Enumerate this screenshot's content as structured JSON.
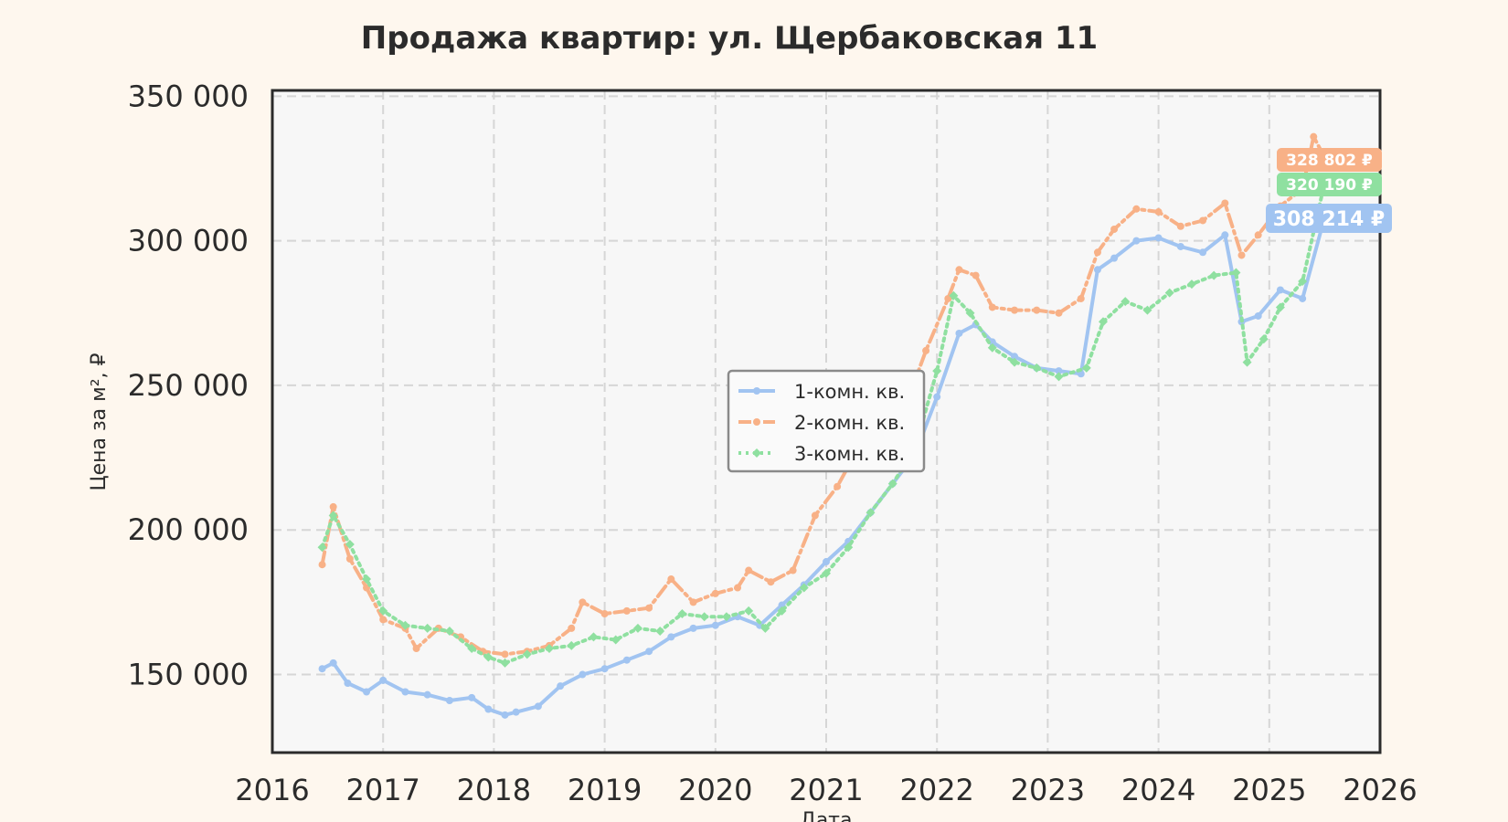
{
  "chart_data": {
    "type": "line",
    "title": "Продажа квартир: ул. Щербаковская 11",
    "xlabel": "Дата",
    "ylabel": "Цена за м², ₽",
    "xlim": [
      2016,
      2026
    ],
    "ylim": [
      123000,
      352000
    ],
    "x_ticks": [
      "2016",
      "2017",
      "2018",
      "2019",
      "2020",
      "2021",
      "2022",
      "2023",
      "2024",
      "2025",
      "2026"
    ],
    "y_ticks": [
      "150 000",
      "200 000",
      "250 000",
      "300 000",
      "350 000"
    ],
    "grid": true,
    "legend_position": "center",
    "series": [
      {
        "name": "1-комн. кв.",
        "color": "#a1c4f1",
        "dash": "solid",
        "marker": "circle",
        "end_label": "308 214 ₽",
        "points": [
          [
            2016.45,
            152000
          ],
          [
            2016.55,
            154000
          ],
          [
            2016.68,
            147000
          ],
          [
            2016.85,
            144000
          ],
          [
            2017.0,
            148000
          ],
          [
            2017.2,
            144000
          ],
          [
            2017.4,
            143000
          ],
          [
            2017.6,
            141000
          ],
          [
            2017.8,
            142000
          ],
          [
            2017.95,
            138000
          ],
          [
            2018.1,
            136000
          ],
          [
            2018.2,
            137000
          ],
          [
            2018.4,
            139000
          ],
          [
            2018.6,
            146000
          ],
          [
            2018.8,
            150000
          ],
          [
            2019.0,
            152000
          ],
          [
            2019.2,
            155000
          ],
          [
            2019.4,
            158000
          ],
          [
            2019.6,
            163000
          ],
          [
            2019.8,
            166000
          ],
          [
            2020.0,
            167000
          ],
          [
            2020.2,
            170000
          ],
          [
            2020.4,
            167000
          ],
          [
            2020.6,
            174000
          ],
          [
            2020.8,
            181000
          ],
          [
            2021.0,
            189000
          ],
          [
            2021.2,
            196000
          ],
          [
            2021.4,
            206000
          ],
          [
            2021.6,
            216000
          ],
          [
            2021.8,
            226000
          ],
          [
            2022.0,
            246000
          ],
          [
            2022.2,
            268000
          ],
          [
            2022.35,
            271000
          ],
          [
            2022.5,
            265000
          ],
          [
            2022.7,
            260000
          ],
          [
            2022.9,
            256000
          ],
          [
            2023.1,
            255000
          ],
          [
            2023.3,
            254000
          ],
          [
            2023.45,
            290000
          ],
          [
            2023.6,
            294000
          ],
          [
            2023.8,
            300000
          ],
          [
            2024.0,
            301000
          ],
          [
            2024.2,
            298000
          ],
          [
            2024.4,
            296000
          ],
          [
            2024.6,
            302000
          ],
          [
            2024.75,
            272000
          ],
          [
            2024.9,
            274000
          ],
          [
            2025.1,
            283000
          ],
          [
            2025.3,
            280000
          ],
          [
            2025.5,
            308214
          ]
        ]
      },
      {
        "name": "2-комн. кв.",
        "color": "#f8b187",
        "dash": "dashdot",
        "marker": "circle",
        "end_label": "328 802 ₽",
        "points": [
          [
            2016.45,
            188000
          ],
          [
            2016.55,
            208000
          ],
          [
            2016.7,
            190000
          ],
          [
            2016.85,
            180000
          ],
          [
            2017.0,
            169000
          ],
          [
            2017.2,
            166000
          ],
          [
            2017.3,
            159000
          ],
          [
            2017.5,
            166000
          ],
          [
            2017.7,
            163000
          ],
          [
            2017.9,
            158000
          ],
          [
            2018.1,
            157000
          ],
          [
            2018.3,
            158000
          ],
          [
            2018.5,
            160000
          ],
          [
            2018.7,
            166000
          ],
          [
            2018.8,
            175000
          ],
          [
            2019.0,
            171000
          ],
          [
            2019.2,
            172000
          ],
          [
            2019.4,
            173000
          ],
          [
            2019.6,
            183000
          ],
          [
            2019.8,
            175000
          ],
          [
            2020.0,
            178000
          ],
          [
            2020.2,
            180000
          ],
          [
            2020.3,
            186000
          ],
          [
            2020.5,
            182000
          ],
          [
            2020.7,
            186000
          ],
          [
            2020.9,
            205000
          ],
          [
            2021.1,
            215000
          ],
          [
            2021.3,
            229000
          ],
          [
            2021.5,
            233000
          ],
          [
            2021.7,
            241000
          ],
          [
            2021.9,
            262000
          ],
          [
            2022.1,
            280000
          ],
          [
            2022.2,
            290000
          ],
          [
            2022.35,
            288000
          ],
          [
            2022.5,
            277000
          ],
          [
            2022.7,
            276000
          ],
          [
            2022.9,
            276000
          ],
          [
            2023.1,
            275000
          ],
          [
            2023.3,
            280000
          ],
          [
            2023.45,
            296000
          ],
          [
            2023.6,
            304000
          ],
          [
            2023.8,
            311000
          ],
          [
            2024.0,
            310000
          ],
          [
            2024.2,
            305000
          ],
          [
            2024.4,
            307000
          ],
          [
            2024.6,
            313000
          ],
          [
            2024.75,
            295000
          ],
          [
            2024.9,
            302000
          ],
          [
            2025.1,
            312000
          ],
          [
            2025.3,
            318000
          ],
          [
            2025.4,
            336000
          ],
          [
            2025.5,
            328802
          ]
        ]
      },
      {
        "name": "3-комн. кв.",
        "color": "#8fe0a0",
        "dash": "dotted",
        "marker": "diamond",
        "end_label": "320 190 ₽",
        "points": [
          [
            2016.45,
            194000
          ],
          [
            2016.55,
            205000
          ],
          [
            2016.7,
            195000
          ],
          [
            2016.85,
            183000
          ],
          [
            2017.0,
            172000
          ],
          [
            2017.2,
            167000
          ],
          [
            2017.4,
            166000
          ],
          [
            2017.6,
            165000
          ],
          [
            2017.8,
            159000
          ],
          [
            2017.95,
            156000
          ],
          [
            2018.1,
            154000
          ],
          [
            2018.3,
            157000
          ],
          [
            2018.5,
            159000
          ],
          [
            2018.7,
            160000
          ],
          [
            2018.9,
            163000
          ],
          [
            2019.1,
            162000
          ],
          [
            2019.3,
            166000
          ],
          [
            2019.5,
            165000
          ],
          [
            2019.7,
            171000
          ],
          [
            2019.9,
            170000
          ],
          [
            2020.1,
            170000
          ],
          [
            2020.3,
            172000
          ],
          [
            2020.45,
            166000
          ],
          [
            2020.6,
            172000
          ],
          [
            2020.8,
            180000
          ],
          [
            2021.0,
            185000
          ],
          [
            2021.2,
            194000
          ],
          [
            2021.4,
            206000
          ],
          [
            2021.6,
            216000
          ],
          [
            2021.8,
            228000
          ],
          [
            2022.0,
            255000
          ],
          [
            2022.15,
            281000
          ],
          [
            2022.3,
            275000
          ],
          [
            2022.5,
            263000
          ],
          [
            2022.7,
            258000
          ],
          [
            2022.9,
            256000
          ],
          [
            2023.1,
            253000
          ],
          [
            2023.35,
            256000
          ],
          [
            2023.5,
            272000
          ],
          [
            2023.7,
            279000
          ],
          [
            2023.9,
            276000
          ],
          [
            2024.1,
            282000
          ],
          [
            2024.3,
            285000
          ],
          [
            2024.5,
            288000
          ],
          [
            2024.7,
            289000
          ],
          [
            2024.8,
            258000
          ],
          [
            2024.95,
            266000
          ],
          [
            2025.1,
            277000
          ],
          [
            2025.3,
            286000
          ],
          [
            2025.5,
            320190
          ]
        ]
      }
    ]
  }
}
